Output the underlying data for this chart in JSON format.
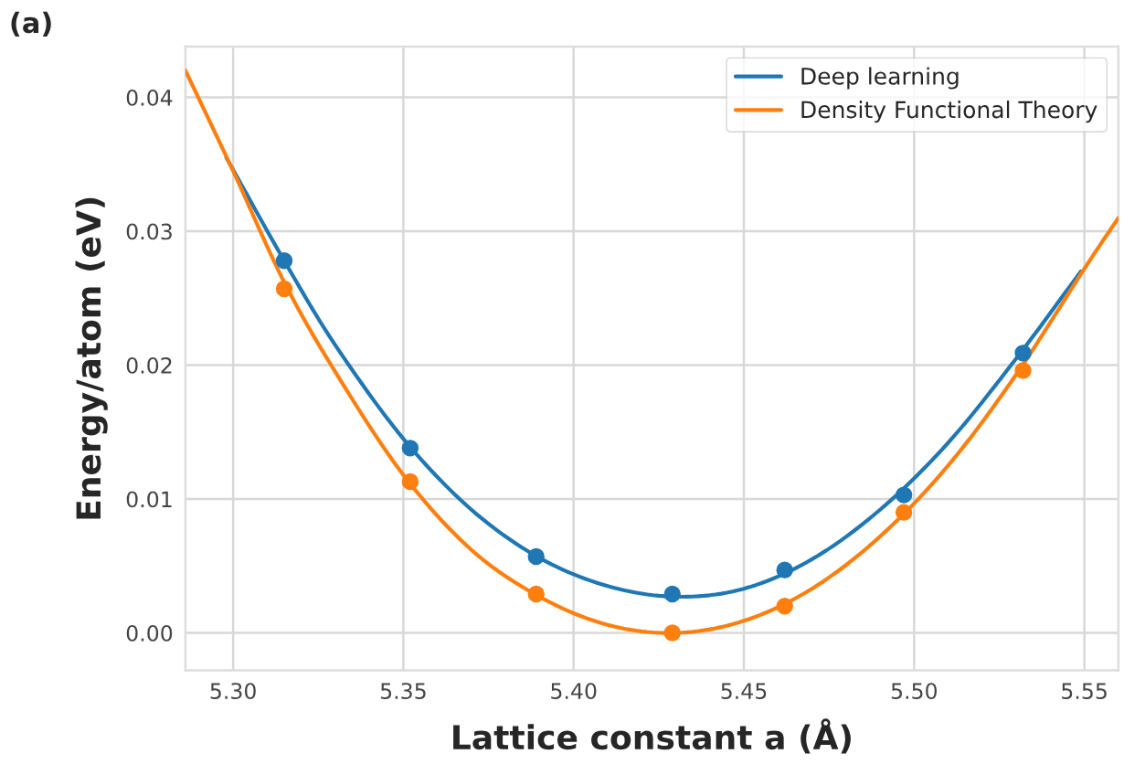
{
  "chart_data": {
    "type": "line",
    "xlabel": "Lattice constant a (Å)",
    "ylabel": "Energy/atom (eV)",
    "annotations": [
      "(a)"
    ],
    "xlim": [
      5.286,
      5.56
    ],
    "xticks": [
      {
        "value": 5.3,
        "label": "5.30"
      },
      {
        "value": 5.35,
        "label": "5.35"
      },
      {
        "value": 5.4,
        "label": "5.40"
      },
      {
        "value": 5.45,
        "label": "5.45"
      },
      {
        "value": 5.5,
        "label": "5.50"
      },
      {
        "value": 5.55,
        "label": "5.55"
      }
    ],
    "ylim": [
      -0.0028,
      0.0438
    ],
    "yticks": [
      {
        "value": 0.0,
        "label": "0.00"
      },
      {
        "value": 0.01,
        "label": "0.01"
      },
      {
        "value": 0.02,
        "label": "0.02"
      },
      {
        "value": 0.03,
        "label": "0.03"
      },
      {
        "value": 0.04,
        "label": "0.04"
      }
    ],
    "grid": true,
    "legend": "top right",
    "series": [
      {
        "name": "Deep learning",
        "color": "#1f77b4",
        "x": [
          5.298,
          5.315,
          5.33,
          5.35,
          5.37,
          5.39,
          5.41,
          5.43,
          5.45,
          5.47,
          5.49,
          5.51,
          5.53,
          5.549
        ],
        "values": [
          0.0355,
          0.0278,
          0.0215,
          0.0145,
          0.0092,
          0.0056,
          0.0035,
          0.0027,
          0.0033,
          0.0055,
          0.0092,
          0.0142,
          0.0205,
          0.027
        ]
      },
      {
        "name": "Density Functional Theory",
        "color": "#ff7f0e",
        "x": [
          5.286,
          5.3,
          5.315,
          5.33,
          5.35,
          5.37,
          5.39,
          5.41,
          5.43,
          5.45,
          5.47,
          5.49,
          5.51,
          5.53,
          5.55,
          5.56
        ],
        "values": [
          0.042,
          0.0345,
          0.0262,
          0.0195,
          0.0118,
          0.0062,
          0.0027,
          0.0006,
          0.0,
          0.0009,
          0.0033,
          0.0072,
          0.0125,
          0.0193,
          0.0272,
          0.031
        ]
      },
      {
        "type": "scatter",
        "marker": "circle",
        "color": "#1f77b4",
        "x": [
          5.315,
          5.352,
          5.389,
          5.429,
          5.462,
          5.497,
          5.532
        ],
        "values": [
          0.0278,
          0.0138,
          0.0057,
          0.0029,
          0.0047,
          0.0103,
          0.0209
        ]
      },
      {
        "type": "scatter",
        "marker": "circle",
        "color": "#ff7f0e",
        "x": [
          5.315,
          5.352,
          5.389,
          5.429,
          5.462,
          5.497,
          5.532
        ],
        "values": [
          0.0257,
          0.0113,
          0.0029,
          0.0,
          0.002,
          0.009,
          0.0196
        ]
      }
    ]
  }
}
